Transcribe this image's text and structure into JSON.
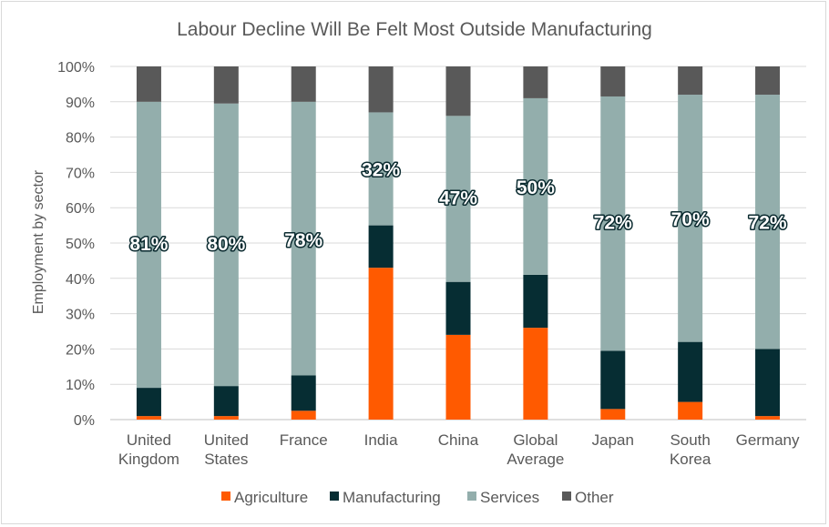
{
  "chart_data": {
    "type": "bar",
    "stacked": true,
    "normalized": true,
    "title": "Labour Decline Will Be Felt Most Outside Manufacturing",
    "xlabel": "",
    "ylabel": "Employment by sector",
    "ylim": [
      0,
      100
    ],
    "y_ticks": [
      "0%",
      "10%",
      "20%",
      "30%",
      "40%",
      "50%",
      "60%",
      "70%",
      "80%",
      "90%",
      "100%"
    ],
    "grid": true,
    "legend_position": "bottom",
    "categories": [
      [
        "United",
        "Kingdom"
      ],
      [
        "United",
        "States"
      ],
      [
        "France"
      ],
      [
        "India"
      ],
      [
        "China"
      ],
      [
        "Global",
        "Average"
      ],
      [
        "Japan"
      ],
      [
        "South",
        "Korea"
      ],
      [
        "Germany"
      ]
    ],
    "series": [
      {
        "name": "Agriculture",
        "color": "#ff5a00",
        "values": [
          1,
          1,
          2.5,
          43,
          24,
          26,
          3,
          5,
          1
        ]
      },
      {
        "name": "Manufacturing",
        "color": "#062d33",
        "values": [
          8,
          8.5,
          10,
          12,
          15,
          15,
          16.5,
          17,
          19
        ]
      },
      {
        "name": "Services",
        "color": "#93aeac",
        "values": [
          81,
          80,
          77.5,
          32,
          47,
          50,
          72,
          70,
          72
        ]
      },
      {
        "name": "Other",
        "color": "#595959",
        "values": [
          10,
          10.5,
          10,
          13,
          14,
          9,
          8.5,
          8,
          8
        ]
      }
    ],
    "data_labels": {
      "series": "Services",
      "labels": [
        "81%",
        "80%",
        "78%",
        "32%",
        "47%",
        "50%",
        "72%",
        "70%",
        "72%"
      ],
      "label_values": [
        50,
        50,
        51,
        71,
        63,
        66,
        56,
        57,
        56
      ]
    }
  }
}
